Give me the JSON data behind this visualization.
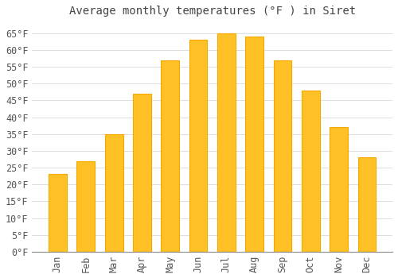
{
  "title": "Average monthly temperatures (°F ) in Siret",
  "months": [
    "Jan",
    "Feb",
    "Mar",
    "Apr",
    "May",
    "Jun",
    "Jul",
    "Aug",
    "Sep",
    "Oct",
    "Nov",
    "Dec"
  ],
  "values": [
    23,
    27,
    35,
    47,
    57,
    63,
    65,
    64,
    57,
    48,
    37,
    28
  ],
  "bar_color": "#FFC125",
  "bar_edge_color": "#F5A800",
  "background_color": "#FFFFFF",
  "grid_color": "#DDDDDD",
  "text_color": "#555555",
  "title_color": "#444444",
  "ylim": [
    0,
    68
  ],
  "yticks": [
    0,
    5,
    10,
    15,
    20,
    25,
    30,
    35,
    40,
    45,
    50,
    55,
    60,
    65
  ],
  "title_fontsize": 10,
  "tick_fontsize": 8.5
}
